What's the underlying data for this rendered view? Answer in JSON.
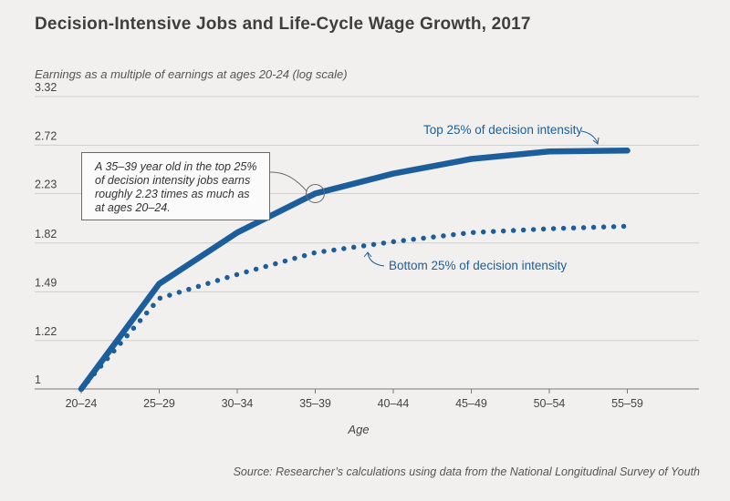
{
  "title": "Decision-Intensive Jobs and Life-Cycle Wage Growth, 2017",
  "source": "Source: Researcher’s calculations using data from the National Longitudinal Survey of Youth",
  "annotation": "A 35–39 year old in the top 25% of decision intensity jobs earns roughly 2.23 times as much as at ages 20–24.",
  "colors": {
    "series": "#1c5e9c",
    "grid": "#cfcfcf",
    "background": "#f1f0ef"
  },
  "chart_data": {
    "type": "line",
    "ylabel": "Earnings as a multiple of earnings at ages 20-24 (log scale)",
    "xlabel": "Age",
    "y_scale": "log",
    "yticks": [
      1,
      1.22,
      1.49,
      1.82,
      2.23,
      2.72,
      3.32
    ],
    "ylim": [
      1,
      3.32
    ],
    "categories": [
      "20–24",
      "25–29",
      "30–34",
      "35–39",
      "40–44",
      "45–49",
      "50–54",
      "55–59"
    ],
    "grid": "horizontal",
    "series": [
      {
        "name": "Top 25% of decision intensity",
        "style": "solid",
        "values": [
          1.0,
          1.54,
          1.9,
          2.23,
          2.42,
          2.57,
          2.65,
          2.66
        ]
      },
      {
        "name": "Bottom 25% of decision intensity",
        "style": "dotted",
        "values": [
          1.0,
          1.45,
          1.6,
          1.75,
          1.83,
          1.9,
          1.93,
          1.95
        ]
      }
    ]
  }
}
